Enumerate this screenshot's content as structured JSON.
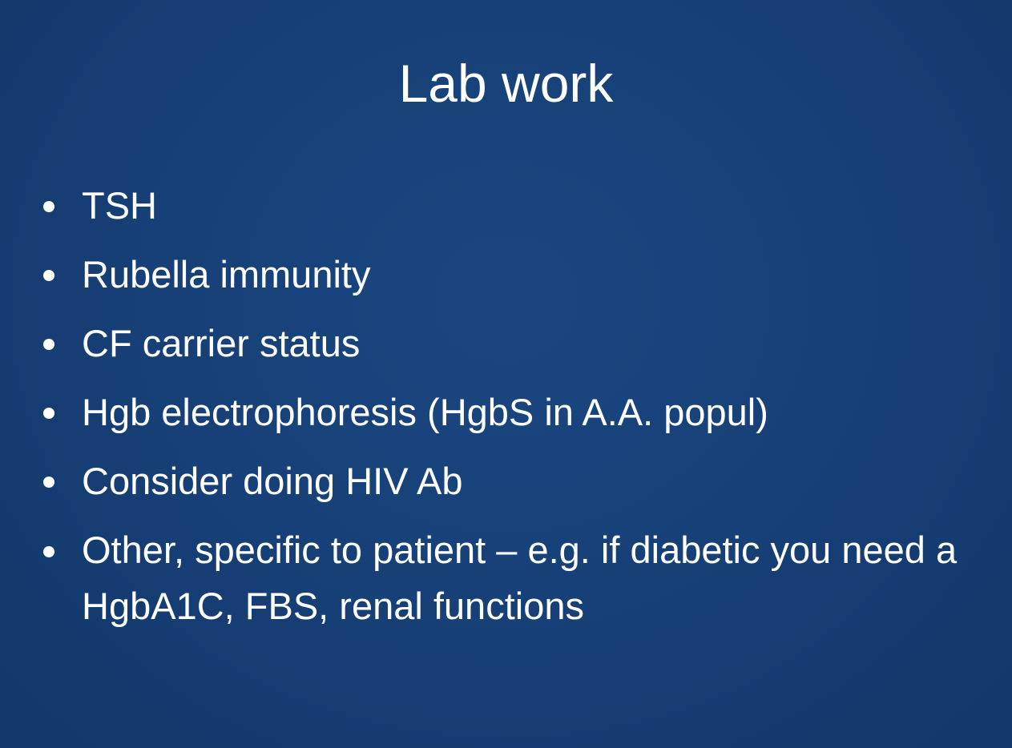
{
  "slide": {
    "title": "Lab work",
    "bullets": [
      "TSH",
      "Rubella immunity",
      "CF carrier status",
      "Hgb electrophoresis (HgbS in A.A. popul)",
      "Consider doing HIV Ab",
      "Other, specific to patient – e.g. if diabetic you need a HgbA1C, FBS, renal functions"
    ]
  },
  "colors": {
    "background": "#163d73",
    "text": "#ffffff"
  }
}
